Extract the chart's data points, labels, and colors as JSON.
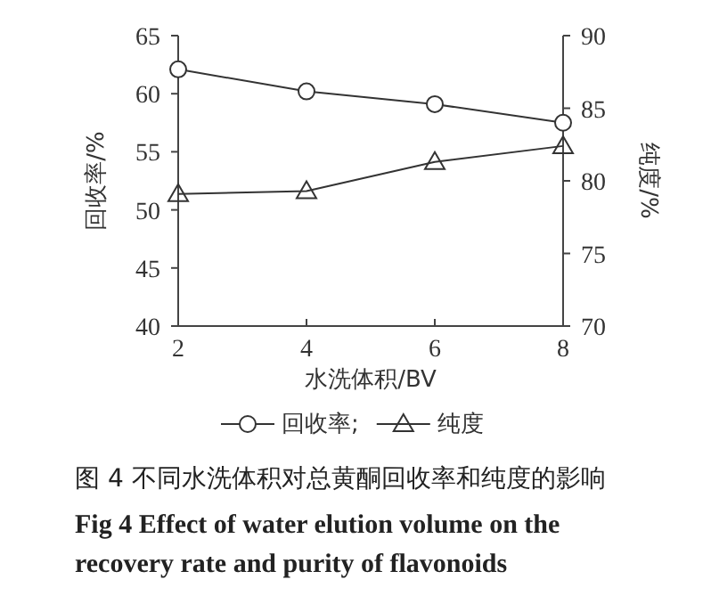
{
  "chart_data": {
    "type": "line",
    "xlabel": "水洗体积/BV",
    "ylabel": "回收率/%",
    "y2label": "纯度/%",
    "x": [
      2,
      4,
      6,
      8
    ],
    "xlim": [
      2,
      8
    ],
    "xticks": [
      2,
      4,
      6,
      8
    ],
    "ylim": [
      40,
      65
    ],
    "yticks": [
      40,
      45,
      50,
      55,
      60,
      65
    ],
    "y2lim": [
      70,
      90
    ],
    "y2ticks": [
      70,
      75,
      80,
      85,
      90
    ],
    "series": [
      {
        "name": "回收率;",
        "color": "#333333",
        "marker": "circle",
        "values": [
          62.1,
          60.2,
          59.1,
          57.5
        ]
      },
      {
        "name": "纯度",
        "color": "#333333",
        "marker": "triangle",
        "axis": "y2",
        "values": [
          79.1,
          79.3,
          81.3,
          82.4
        ]
      }
    ],
    "legend": "bottom",
    "grid": false,
    "annotations": [
      "图 4 不同水洗体积对总黄酮回收率和纯度的影响",
      "Fig 4 Effect of water elution volume on the recovery rate and purity of flavonoids"
    ]
  }
}
